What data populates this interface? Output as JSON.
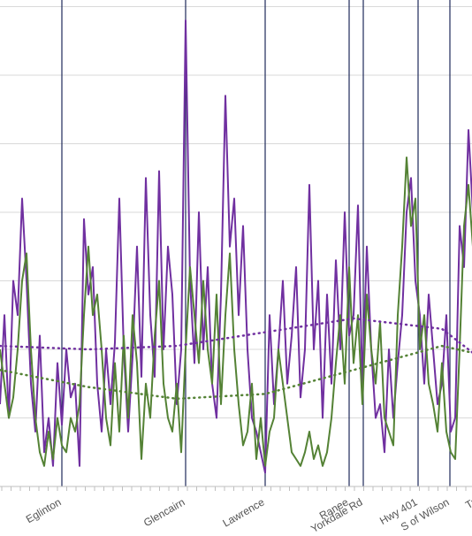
{
  "chart_data": {
    "type": "line",
    "x": [
      0,
      1,
      2,
      3,
      4,
      5,
      6,
      7,
      8,
      9,
      10,
      11,
      12,
      13,
      14,
      15,
      16,
      17,
      18,
      19,
      20,
      21,
      22,
      23,
      24,
      25,
      26,
      27,
      28,
      29,
      30,
      31,
      32,
      33,
      34,
      35,
      36,
      37,
      38,
      39,
      40,
      41,
      42,
      43,
      44,
      45,
      46,
      47,
      48,
      49,
      50,
      51,
      52,
      53,
      54,
      55,
      56,
      57,
      58,
      59,
      60,
      61,
      62,
      63,
      64,
      65,
      66,
      67,
      68,
      69,
      70,
      71,
      72,
      73,
      74,
      75,
      76,
      77,
      78,
      79,
      80,
      81,
      82,
      83,
      84,
      85,
      86,
      87,
      88,
      89,
      90,
      91,
      92,
      93,
      94,
      95,
      96,
      97,
      98,
      99,
      100,
      101,
      102,
      103,
      104,
      105,
      106,
      107
    ],
    "xlim": [
      0,
      107
    ],
    "ylim": [
      0,
      7
    ],
    "ygrid": [
      0,
      1,
      2,
      3,
      4,
      5,
      6,
      7
    ],
    "series": [
      {
        "color": "#7030a0",
        "values": [
          1.2,
          2.5,
          1.0,
          3.0,
          2.5,
          4.2,
          3.0,
          1.5,
          0.8,
          2.2,
          0.5,
          1.0,
          0.3,
          1.8,
          0.9,
          2.0,
          1.3,
          1.5,
          0.3,
          3.9,
          2.8,
          3.2,
          1.5,
          0.8,
          2.0,
          1.2,
          2.1,
          4.2,
          2.0,
          0.8,
          1.9,
          3.5,
          1.6,
          4.5,
          2.5,
          1.6,
          4.6,
          2.0,
          3.5,
          2.8,
          1.2,
          2.0,
          6.8,
          3.0,
          1.8,
          4.0,
          2.0,
          3.2,
          1.5,
          1.0,
          2.8,
          5.7,
          3.5,
          4.2,
          2.5,
          3.8,
          2.0,
          1.0,
          0.8,
          0.5,
          0.2,
          2.5,
          1.2,
          2.0,
          3.0,
          1.5,
          2.2,
          3.2,
          1.3,
          2.0,
          4.4,
          2.0,
          3.0,
          1.0,
          2.8,
          1.5,
          3.3,
          2.0,
          4.0,
          2.2,
          2.5,
          4.1,
          1.5,
          3.5,
          2.0,
          1.0,
          1.2,
          0.5,
          2.0,
          1.0,
          1.8,
          2.5,
          4.0,
          4.5,
          3.0,
          2.5,
          1.5,
          2.8,
          2.0,
          1.2,
          1.5,
          2.5,
          0.8,
          1.0,
          3.8,
          3.2,
          5.2,
          4.0
        ]
      },
      {
        "color": "#548235",
        "values": [
          2.0,
          1.5,
          1.0,
          1.3,
          2.0,
          3.0,
          3.4,
          2.0,
          1.0,
          0.5,
          0.3,
          0.8,
          0.4,
          1.0,
          0.6,
          0.5,
          1.0,
          0.8,
          1.2,
          2.5,
          3.5,
          2.5,
          2.8,
          2.0,
          1.0,
          0.6,
          1.8,
          0.8,
          2.2,
          1.0,
          2.5,
          1.8,
          0.4,
          1.5,
          1.0,
          2.2,
          3.0,
          1.5,
          1.0,
          0.8,
          1.5,
          0.5,
          2.0,
          3.2,
          2.5,
          1.8,
          3.0,
          2.0,
          1.5,
          2.8,
          1.2,
          2.5,
          3.4,
          2.0,
          1.2,
          0.6,
          0.8,
          1.5,
          0.4,
          1.0,
          0.3,
          0.8,
          1.0,
          2.0,
          1.5,
          1.0,
          0.5,
          0.4,
          0.3,
          0.5,
          0.8,
          0.4,
          0.6,
          0.3,
          0.5,
          1.0,
          1.8,
          2.5,
          1.5,
          3.2,
          1.8,
          2.5,
          1.2,
          2.8,
          2.0,
          1.5,
          2.4,
          1.0,
          0.8,
          0.6,
          2.5,
          3.5,
          4.8,
          3.8,
          4.2,
          2.0,
          2.5,
          1.5,
          1.2,
          0.8,
          1.8,
          0.8,
          0.5,
          0.4,
          2.0,
          3.8,
          4.4,
          3.5
        ]
      }
    ],
    "trendlines": [
      {
        "color": "#7030a0",
        "x": [
          0,
          20,
          40,
          60,
          80,
          100,
          107
        ],
        "values": [
          2.05,
          2.0,
          2.05,
          2.25,
          2.45,
          2.3,
          1.95
        ]
      },
      {
        "color": "#548235",
        "x": [
          0,
          20,
          40,
          60,
          80,
          100,
          107
        ],
        "values": [
          1.7,
          1.45,
          1.28,
          1.35,
          1.7,
          2.05,
          1.95
        ]
      }
    ],
    "stations": [
      {
        "name": "Eglinton",
        "x": 14
      },
      {
        "name": "Glencairn",
        "x": 42
      },
      {
        "name": "Lawrence",
        "x": 60
      },
      {
        "name": "Ranee",
        "x": 79
      },
      {
        "name": "Yorkdale Rd",
        "x": 82.2
      },
      {
        "name": "Hwy 401",
        "x": 94.6
      },
      {
        "name": "S of Wilson",
        "x": 101.8
      },
      {
        "name": "Tr",
        "x": 107.8
      }
    ],
    "station_line_color": "#1f2a5a"
  }
}
